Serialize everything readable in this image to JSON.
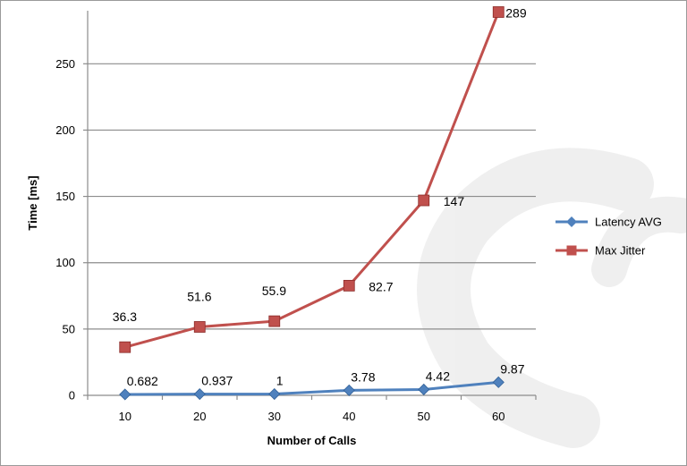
{
  "chart_data": {
    "type": "line",
    "title": "",
    "xlabel": "Number of Calls",
    "ylabel": "Time [ms]",
    "x": [
      10,
      20,
      30,
      40,
      50,
      60
    ],
    "x_tick_labels": [
      "10",
      "20",
      "30",
      "40",
      "50",
      "60"
    ],
    "ylim": [
      0,
      290
    ],
    "y_ticks": [
      0,
      50,
      100,
      150,
      200,
      250
    ],
    "y_tick_labels": [
      "0",
      "50",
      "100",
      "150",
      "200",
      "250"
    ],
    "grid": "horizontal",
    "legend_position": "right",
    "series": [
      {
        "name": "Latency AVG",
        "color": "#4f81bd",
        "marker": "diamond",
        "values": [
          0.682,
          0.937,
          1,
          3.78,
          4.42,
          9.87
        ],
        "labels": [
          "0.682",
          "0.937",
          "1",
          "3.78",
          "4.42",
          "9.87"
        ]
      },
      {
        "name": "Max Jitter",
        "color": "#c0504d",
        "marker": "square",
        "values": [
          36.3,
          51.6,
          55.9,
          82.7,
          147,
          289
        ],
        "labels": [
          "36.3",
          "51.6",
          "55.9",
          "82.7",
          "147",
          "289"
        ]
      }
    ]
  }
}
